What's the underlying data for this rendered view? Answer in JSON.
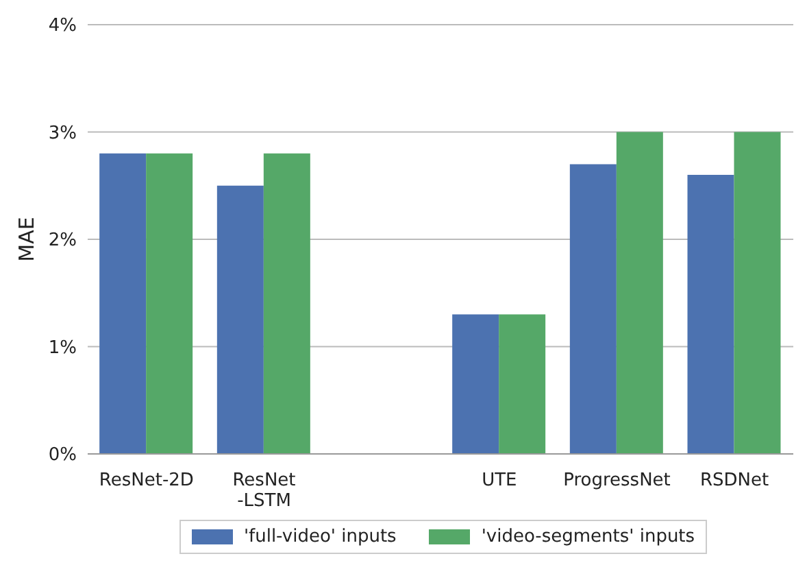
{
  "chart_data": {
    "type": "bar",
    "ylabel": "MAE",
    "categories": [
      "ResNet-2D",
      "ResNet\n-LSTM",
      null,
      "UTE",
      "ProgressNet",
      "RSDNet"
    ],
    "series": [
      {
        "name": "'full-video' inputs",
        "color": "#4c72b0",
        "values": [
          2.8,
          2.5,
          null,
          1.3,
          2.7,
          2.6
        ]
      },
      {
        "name": "'video-segments' inputs",
        "color": "#55a868",
        "values": [
          2.8,
          2.8,
          null,
          1.3,
          3.0,
          3.0
        ]
      }
    ],
    "ylim": [
      0,
      4
    ],
    "yticks": [
      {
        "value": 0,
        "label": "0%"
      },
      {
        "value": 1,
        "label": "1%"
      },
      {
        "value": 2,
        "label": "2%"
      },
      {
        "value": 3,
        "label": "3%"
      },
      {
        "value": 4,
        "label": "4%"
      }
    ],
    "grid": "y",
    "legend": "bottom"
  }
}
